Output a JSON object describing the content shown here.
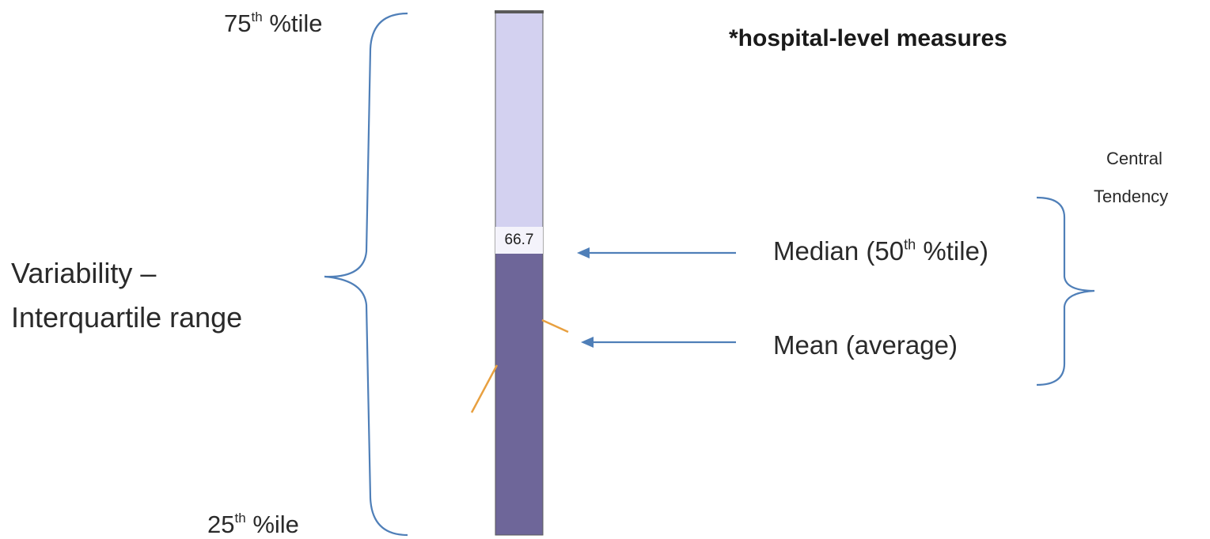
{
  "title": "*hospital-level measures",
  "percentile_75": {
    "number": "75",
    "suffix": "th",
    "label": " %tile"
  },
  "percentile_25": {
    "number": "25",
    "suffix": "th",
    "label": " %ile"
  },
  "variability": {
    "line1": "Variability –",
    "line2": "Interquartile range"
  },
  "median": {
    "prefix": "Median (50",
    "suffix": "th",
    "after": " %tile)"
  },
  "mean": {
    "label": "Mean (average)"
  },
  "central_tendency": {
    "line1": "Central",
    "line2": "Tendency"
  },
  "bar": {
    "median_value_label": "66.7",
    "median_value": 66.7,
    "colors": {
      "upper_quartile": "#d3d1f0",
      "lower_quartile": "#6e6699",
      "bar_outline": "#5a5a5a",
      "bracket": "#4f7fb8",
      "arrow": "#4f7fb8",
      "accent_marks": "#e8a040"
    }
  }
}
